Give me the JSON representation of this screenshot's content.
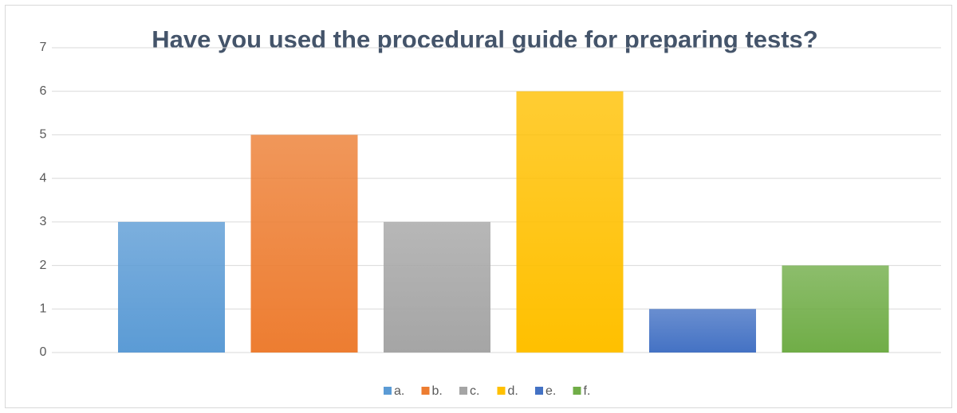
{
  "chart_data": {
    "type": "bar",
    "title": "Have you used the procedural guide for preparing tests?",
    "series": [
      {
        "name": "a.",
        "color": "#5b9bd5",
        "values": [
          3
        ]
      },
      {
        "name": "b.",
        "color": "#ed7d31",
        "values": [
          5
        ]
      },
      {
        "name": "c.",
        "color": "#a5a5a5",
        "values": [
          3
        ]
      },
      {
        "name": "d.",
        "color": "#ffc000",
        "values": [
          6
        ]
      },
      {
        "name": "e.",
        "color": "#4472c4",
        "values": [
          1
        ]
      },
      {
        "name": "f.",
        "color": "#70ad47",
        "values": [
          2
        ]
      }
    ],
    "ylim": [
      0,
      7
    ],
    "yticks": [
      0,
      1,
      2,
      3,
      4,
      5,
      6,
      7
    ],
    "grid": true,
    "legend": "bottom"
  }
}
